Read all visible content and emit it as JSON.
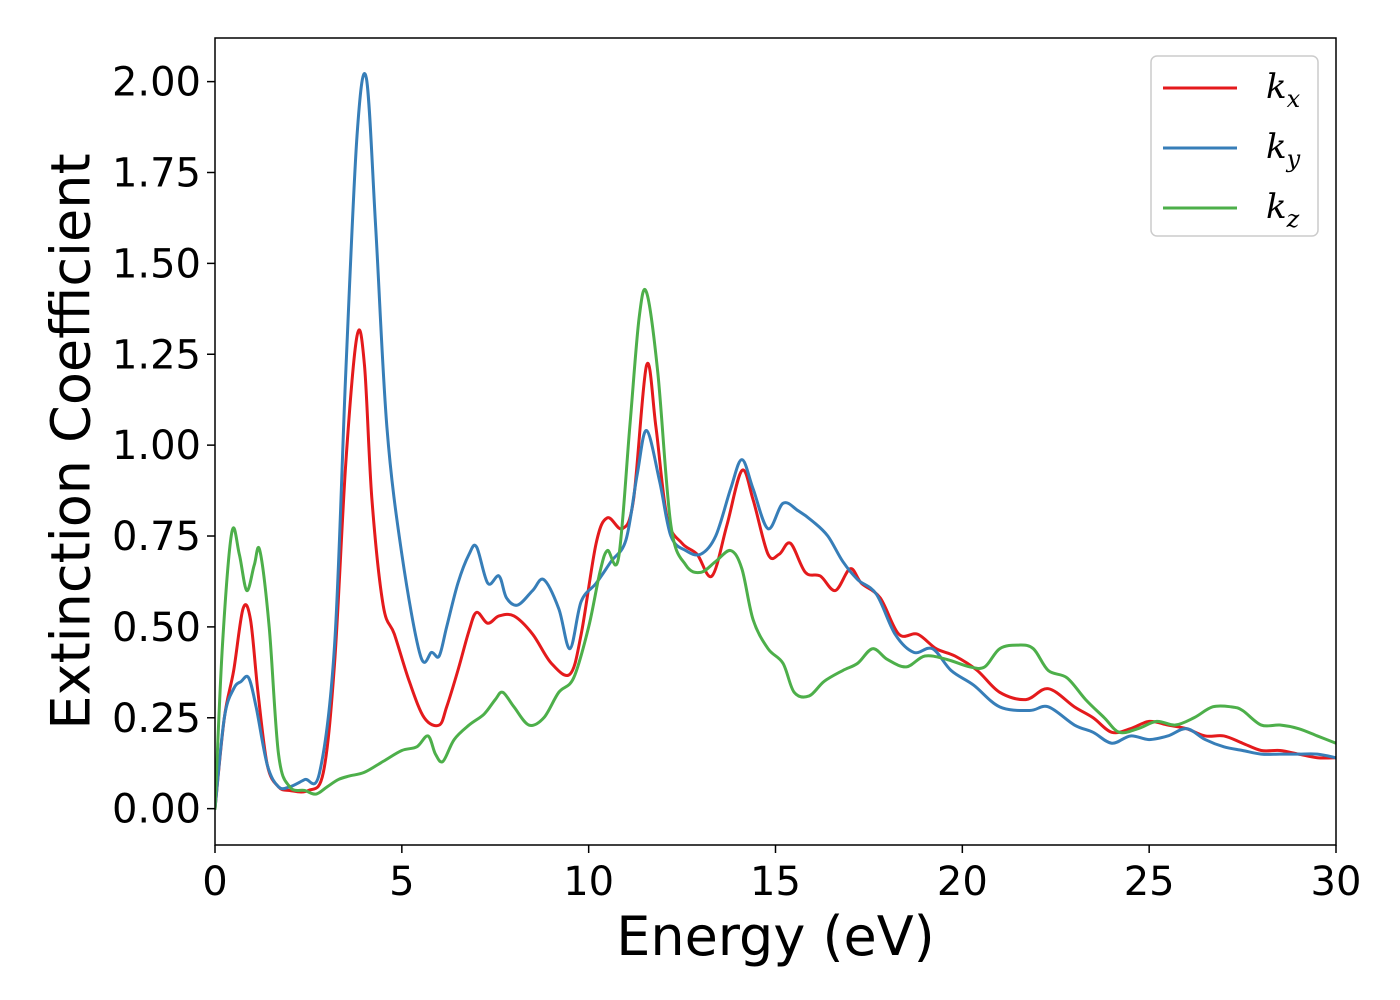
{
  "chart_data": {
    "type": "line",
    "title": "",
    "xlabel": "Energy (eV)",
    "ylabel": "Extinction Coefficient",
    "xlim": [
      0,
      30
    ],
    "ylim": [
      -0.1,
      2.12
    ],
    "x_ticks": [
      0,
      5,
      10,
      15,
      20,
      25,
      30
    ],
    "x_tick_labels": [
      "0",
      "5",
      "10",
      "15",
      "20",
      "25",
      "30"
    ],
    "y_ticks": [
      0,
      0.25,
      0.5,
      0.75,
      1.0,
      1.25,
      1.5,
      1.75,
      2.0
    ],
    "y_tick_labels": [
      "0.00",
      "0.25",
      "0.50",
      "0.75",
      "1.00",
      "1.25",
      "1.50",
      "1.75",
      "2.00"
    ],
    "grid": false,
    "legend_position": "top-right",
    "series": [
      {
        "name": "k_x",
        "legend_base": "k",
        "legend_sub": "x",
        "color": "#e41a1c",
        "x": [
          0,
          0.25,
          0.5,
          0.75,
          0.95,
          1.15,
          1.4,
          1.7,
          2.0,
          2.5,
          2.9,
          3.2,
          3.5,
          3.8,
          4.0,
          4.2,
          4.5,
          4.8,
          5.2,
          5.6,
          6.0,
          6.2,
          6.5,
          6.8,
          7.0,
          7.3,
          7.6,
          8.0,
          8.5,
          9.0,
          9.5,
          9.8,
          10.2,
          10.5,
          10.9,
          11.2,
          11.55,
          11.8,
          12.1,
          12.5,
          12.9,
          13.3,
          13.7,
          14.1,
          14.4,
          14.8,
          15.1,
          15.4,
          15.8,
          16.2,
          16.6,
          17.0,
          17.3,
          17.8,
          18.3,
          18.8,
          19.3,
          19.8,
          20.4,
          21.0,
          21.7,
          22.3,
          23.0,
          23.5,
          24.0,
          24.5,
          25.0,
          25.5,
          26.0,
          26.5,
          27.0,
          27.5,
          28.0,
          28.5,
          29.0,
          29.5,
          30.0
        ],
        "values": [
          0.0,
          0.25,
          0.38,
          0.55,
          0.52,
          0.32,
          0.12,
          0.06,
          0.05,
          0.05,
          0.1,
          0.4,
          0.95,
          1.3,
          1.22,
          0.85,
          0.56,
          0.48,
          0.35,
          0.25,
          0.23,
          0.28,
          0.38,
          0.49,
          0.54,
          0.51,
          0.53,
          0.53,
          0.48,
          0.4,
          0.37,
          0.48,
          0.73,
          0.8,
          0.77,
          0.85,
          1.22,
          1.05,
          0.8,
          0.73,
          0.7,
          0.64,
          0.78,
          0.93,
          0.85,
          0.7,
          0.7,
          0.73,
          0.65,
          0.64,
          0.6,
          0.66,
          0.62,
          0.58,
          0.48,
          0.48,
          0.44,
          0.42,
          0.38,
          0.32,
          0.3,
          0.33,
          0.28,
          0.25,
          0.21,
          0.22,
          0.24,
          0.23,
          0.22,
          0.2,
          0.2,
          0.18,
          0.16,
          0.16,
          0.15,
          0.14,
          0.14
        ]
      },
      {
        "name": "k_y",
        "legend_base": "k",
        "legend_sub": "y",
        "color": "#377eb8",
        "x": [
          0,
          0.25,
          0.5,
          0.7,
          0.9,
          1.1,
          1.4,
          1.7,
          2.0,
          2.4,
          2.8,
          3.2,
          3.5,
          3.8,
          4.05,
          4.3,
          4.6,
          5.0,
          5.5,
          5.8,
          6.0,
          6.2,
          6.5,
          6.8,
          7.0,
          7.3,
          7.6,
          7.8,
          8.1,
          8.5,
          8.8,
          9.2,
          9.5,
          9.8,
          10.2,
          10.6,
          11.0,
          11.3,
          11.55,
          11.9,
          12.2,
          12.6,
          13.0,
          13.4,
          13.8,
          14.1,
          14.4,
          14.8,
          15.2,
          15.6,
          16.0,
          16.4,
          16.8,
          17.2,
          17.7,
          18.2,
          18.7,
          19.2,
          19.7,
          20.3,
          21.0,
          21.8,
          22.3,
          23.0,
          23.5,
          24.0,
          24.5,
          25.0,
          25.5,
          26.0,
          26.5,
          27.0,
          27.5,
          28.0,
          28.5,
          29.0,
          29.5,
          30.0
        ],
        "values": [
          0.0,
          0.25,
          0.33,
          0.35,
          0.36,
          0.28,
          0.12,
          0.06,
          0.06,
          0.08,
          0.1,
          0.45,
          1.2,
          1.85,
          2.01,
          1.6,
          1.05,
          0.7,
          0.42,
          0.43,
          0.42,
          0.5,
          0.62,
          0.7,
          0.72,
          0.62,
          0.64,
          0.58,
          0.56,
          0.6,
          0.63,
          0.55,
          0.44,
          0.57,
          0.62,
          0.68,
          0.74,
          0.92,
          1.04,
          0.9,
          0.75,
          0.71,
          0.7,
          0.75,
          0.88,
          0.96,
          0.88,
          0.77,
          0.84,
          0.82,
          0.79,
          0.75,
          0.68,
          0.63,
          0.59,
          0.48,
          0.43,
          0.44,
          0.38,
          0.34,
          0.28,
          0.27,
          0.28,
          0.23,
          0.21,
          0.18,
          0.2,
          0.19,
          0.2,
          0.22,
          0.19,
          0.17,
          0.16,
          0.15,
          0.15,
          0.15,
          0.15,
          0.14
        ]
      },
      {
        "name": "k_z",
        "legend_base": "k",
        "legend_sub": "z",
        "color": "#4daf4a",
        "x": [
          0,
          0.2,
          0.45,
          0.65,
          0.85,
          1.05,
          1.2,
          1.45,
          1.7,
          2.0,
          2.4,
          2.7,
          3.0,
          3.3,
          3.6,
          4.0,
          4.5,
          5.0,
          5.4,
          5.7,
          5.9,
          6.1,
          6.4,
          6.8,
          7.2,
          7.5,
          7.7,
          8.0,
          8.4,
          8.8,
          9.2,
          9.6,
          10.0,
          10.3,
          10.5,
          10.8,
          11.1,
          11.35,
          11.55,
          11.85,
          12.2,
          12.6,
          13.0,
          13.4,
          13.8,
          14.1,
          14.4,
          14.8,
          15.2,
          15.5,
          15.9,
          16.3,
          16.8,
          17.2,
          17.6,
          18.0,
          18.5,
          19.0,
          19.6,
          20.2,
          20.6,
          21.0,
          21.5,
          21.9,
          22.3,
          22.8,
          23.3,
          23.8,
          24.2,
          24.7,
          25.2,
          25.7,
          26.2,
          26.7,
          27.2,
          27.5,
          28.0,
          28.5,
          29.0,
          29.5,
          30.0
        ],
        "values": [
          0.0,
          0.45,
          0.76,
          0.7,
          0.6,
          0.67,
          0.71,
          0.5,
          0.15,
          0.06,
          0.05,
          0.04,
          0.06,
          0.08,
          0.09,
          0.1,
          0.13,
          0.16,
          0.17,
          0.2,
          0.15,
          0.13,
          0.19,
          0.23,
          0.26,
          0.3,
          0.32,
          0.28,
          0.23,
          0.25,
          0.32,
          0.36,
          0.5,
          0.65,
          0.71,
          0.69,
          1.05,
          1.35,
          1.42,
          1.2,
          0.78,
          0.67,
          0.65,
          0.68,
          0.71,
          0.66,
          0.52,
          0.44,
          0.4,
          0.32,
          0.31,
          0.35,
          0.38,
          0.4,
          0.44,
          0.41,
          0.39,
          0.42,
          0.41,
          0.39,
          0.39,
          0.44,
          0.45,
          0.44,
          0.38,
          0.36,
          0.3,
          0.25,
          0.21,
          0.22,
          0.24,
          0.23,
          0.25,
          0.28,
          0.28,
          0.27,
          0.23,
          0.23,
          0.22,
          0.2,
          0.18
        ]
      }
    ]
  }
}
